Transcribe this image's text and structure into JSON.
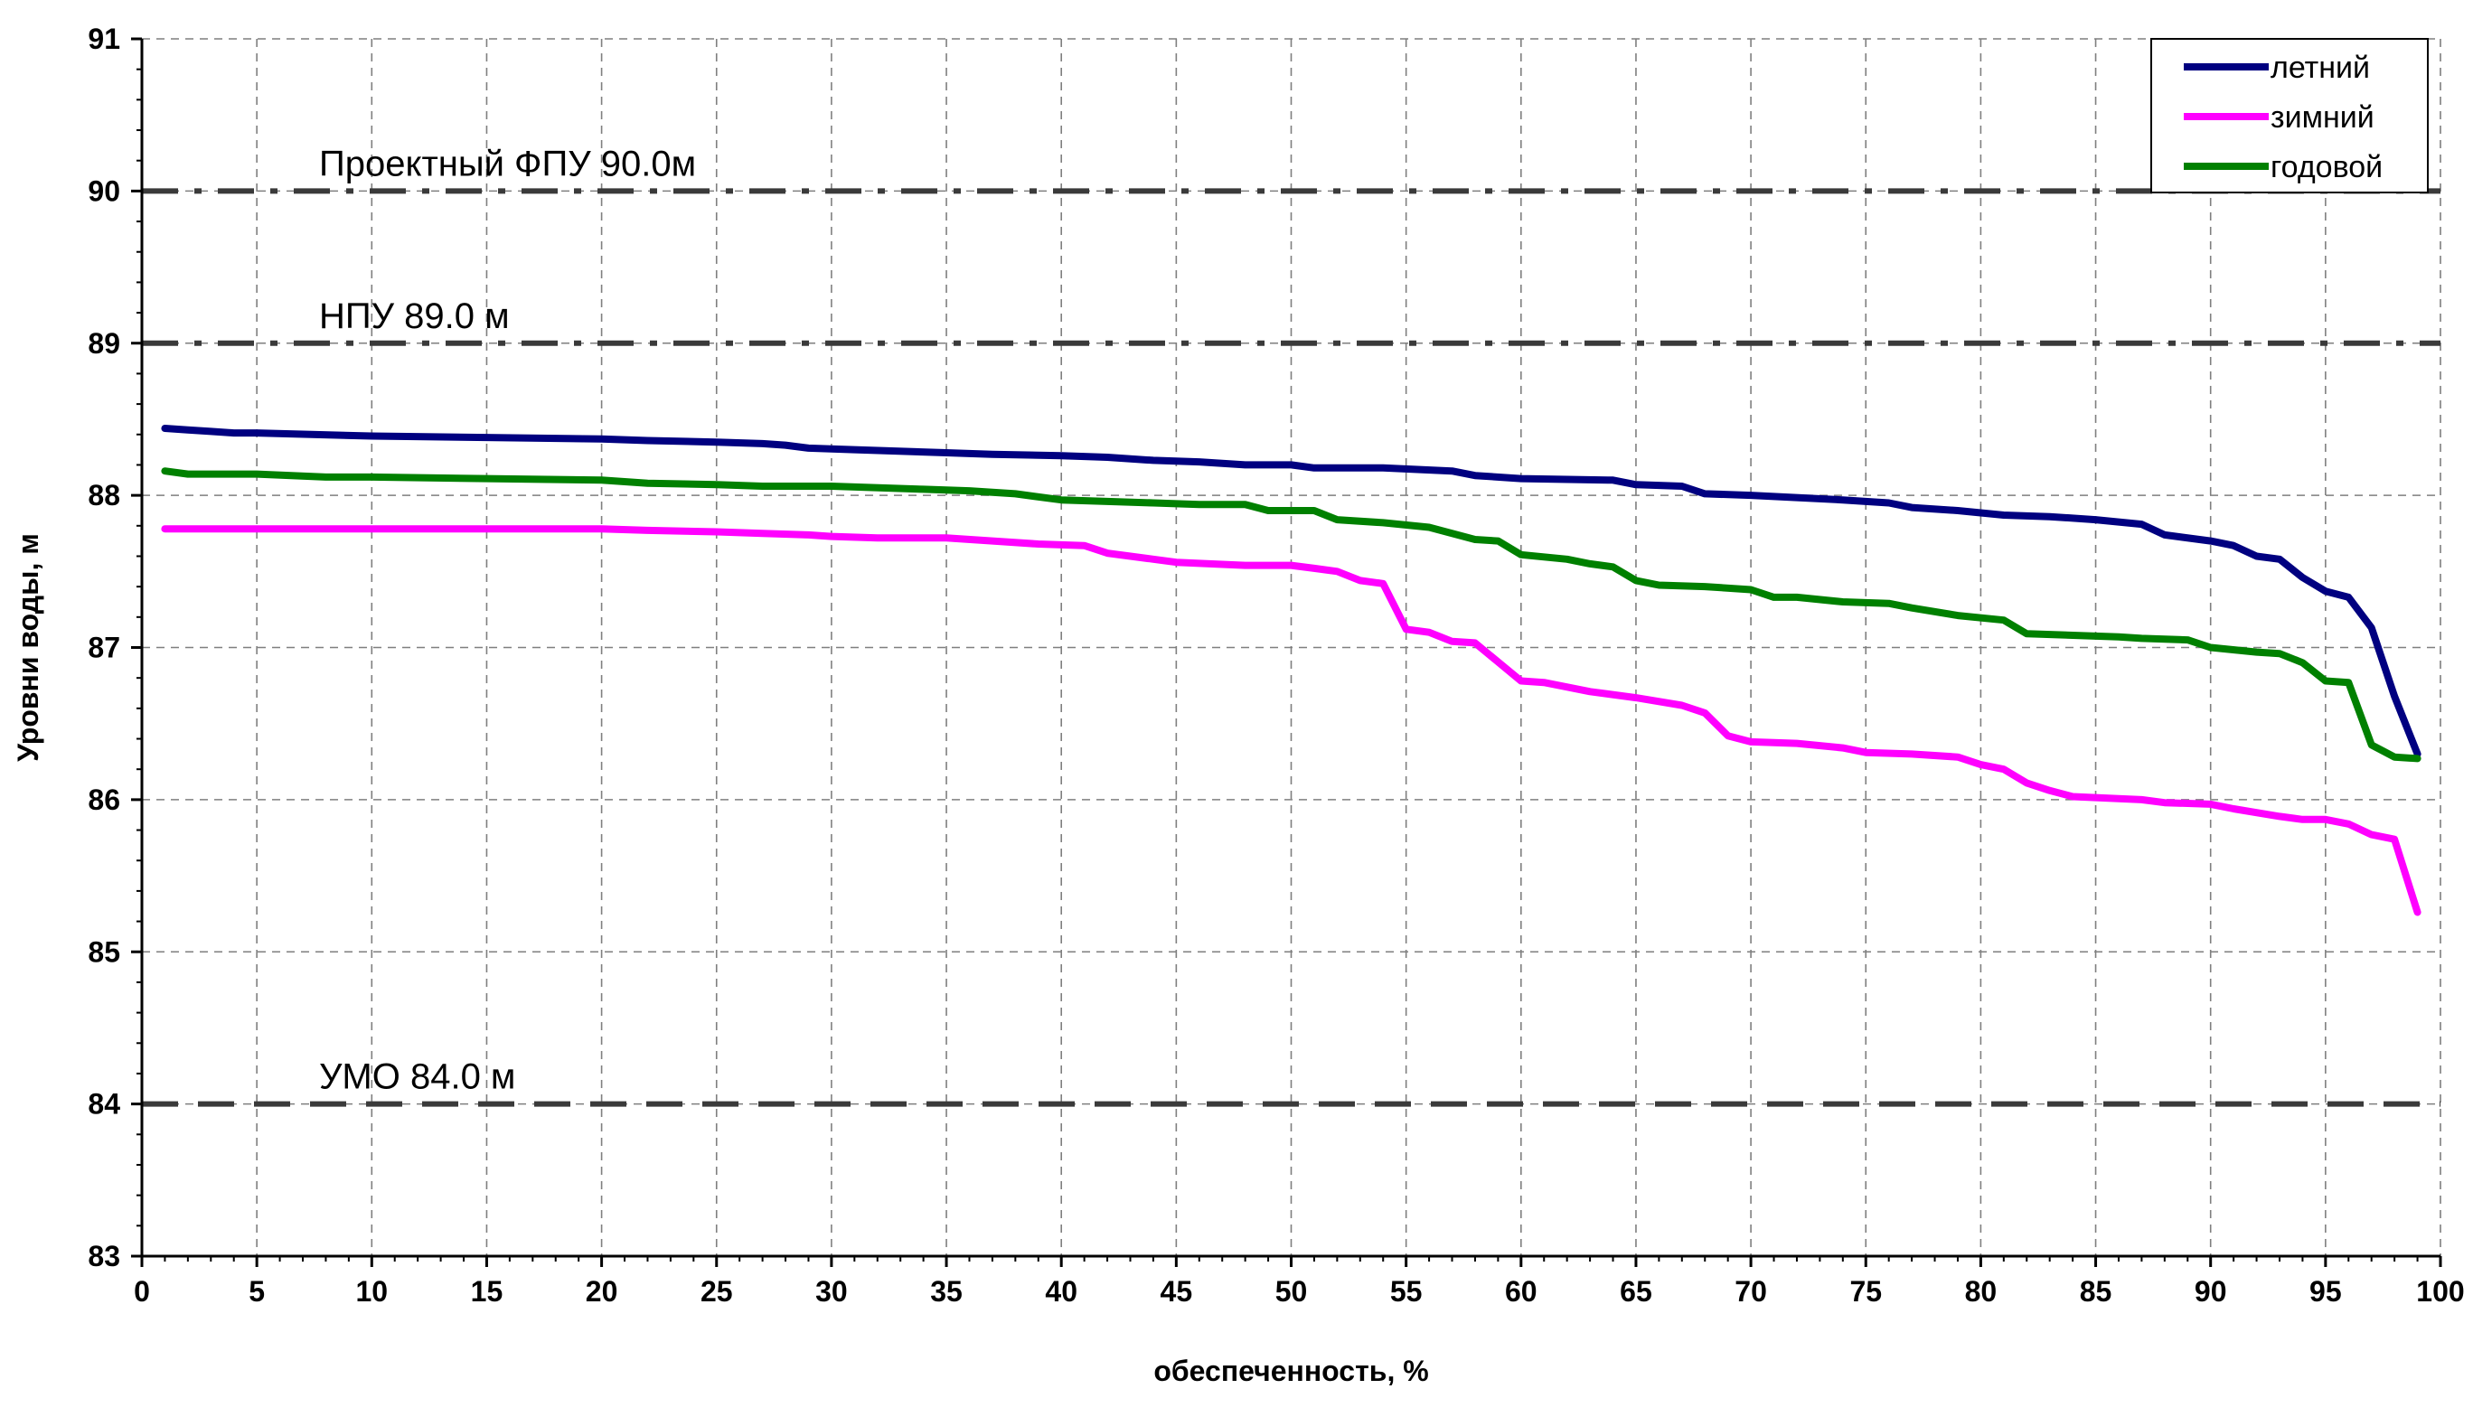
{
  "chart_data": {
    "type": "line",
    "xlabel": "обеспеченность, %",
    "ylabel": "Уровни воды, м",
    "xlim": [
      0,
      100
    ],
    "ylim": [
      83,
      91
    ],
    "x_ticks": [
      "0",
      "5",
      "10",
      "15",
      "20",
      "25",
      "30",
      "35",
      "40",
      "45",
      "50",
      "55",
      "60",
      "65",
      "70",
      "75",
      "80",
      "85",
      "90",
      "95",
      "100"
    ],
    "y_ticks": [
      "83",
      "84",
      "85",
      "86",
      "87",
      "88",
      "89",
      "90",
      "91"
    ],
    "grid": true,
    "legend_position": "top-right",
    "reference_lines": [
      {
        "label": "Проектный ФПУ 90.0м",
        "y": 90.0,
        "style": "dash-dot"
      },
      {
        "label": "НПУ 89.0 м",
        "y": 89.0,
        "style": "dash-dot"
      },
      {
        "label": "УМО 84.0 м",
        "y": 84.0,
        "style": "dash"
      }
    ],
    "series": [
      {
        "name": "летний",
        "color": "#000080",
        "points": [
          [
            1,
            88.44
          ],
          [
            2,
            88.43
          ],
          [
            3,
            88.42
          ],
          [
            4,
            88.41
          ],
          [
            5,
            88.41
          ],
          [
            10,
            88.39
          ],
          [
            15,
            88.38
          ],
          [
            20,
            88.37
          ],
          [
            22,
            88.36
          ],
          [
            25,
            88.35
          ],
          [
            27,
            88.34
          ],
          [
            28,
            88.33
          ],
          [
            29,
            88.31
          ],
          [
            31,
            88.3
          ],
          [
            35,
            88.28
          ],
          [
            37,
            88.27
          ],
          [
            40,
            88.26
          ],
          [
            42,
            88.25
          ],
          [
            44,
            88.23
          ],
          [
            46,
            88.22
          ],
          [
            48,
            88.2
          ],
          [
            50,
            88.2
          ],
          [
            51,
            88.18
          ],
          [
            54,
            88.18
          ],
          [
            57,
            88.16
          ],
          [
            58,
            88.13
          ],
          [
            60,
            88.11
          ],
          [
            64,
            88.1
          ],
          [
            65,
            88.07
          ],
          [
            67,
            88.06
          ],
          [
            68,
            88.01
          ],
          [
            70,
            88.0
          ],
          [
            74,
            87.97
          ],
          [
            76,
            87.95
          ],
          [
            77,
            87.92
          ],
          [
            79,
            87.9
          ],
          [
            81,
            87.87
          ],
          [
            83,
            87.86
          ],
          [
            85,
            87.84
          ],
          [
            87,
            87.81
          ],
          [
            88,
            87.74
          ],
          [
            90,
            87.7
          ],
          [
            91,
            87.67
          ],
          [
            92,
            87.6
          ],
          [
            93,
            87.58
          ],
          [
            94,
            87.46
          ],
          [
            95,
            87.37
          ],
          [
            96,
            87.33
          ],
          [
            97,
            87.13
          ],
          [
            98,
            86.68
          ],
          [
            99,
            86.3
          ]
        ]
      },
      {
        "name": "зимний",
        "color": "#ff00ff",
        "points": [
          [
            1,
            87.78
          ],
          [
            5,
            87.78
          ],
          [
            10,
            87.78
          ],
          [
            15,
            87.78
          ],
          [
            20,
            87.78
          ],
          [
            22,
            87.77
          ],
          [
            25,
            87.76
          ],
          [
            27,
            87.75
          ],
          [
            29,
            87.74
          ],
          [
            30,
            87.73
          ],
          [
            32,
            87.72
          ],
          [
            35,
            87.72
          ],
          [
            37,
            87.7
          ],
          [
            39,
            87.68
          ],
          [
            41,
            87.67
          ],
          [
            42,
            87.62
          ],
          [
            44,
            87.58
          ],
          [
            45,
            87.56
          ],
          [
            48,
            87.54
          ],
          [
            50,
            87.54
          ],
          [
            51,
            87.52
          ],
          [
            52,
            87.5
          ],
          [
            53,
            87.44
          ],
          [
            54,
            87.42
          ],
          [
            55,
            87.12
          ],
          [
            56,
            87.1
          ],
          [
            57,
            87.04
          ],
          [
            58,
            87.03
          ],
          [
            60,
            86.78
          ],
          [
            61,
            86.77
          ],
          [
            63,
            86.71
          ],
          [
            65,
            86.67
          ],
          [
            67,
            86.62
          ],
          [
            68,
            86.57
          ],
          [
            69,
            86.42
          ],
          [
            70,
            86.38
          ],
          [
            72,
            86.37
          ],
          [
            74,
            86.34
          ],
          [
            75,
            86.31
          ],
          [
            77,
            86.3
          ],
          [
            79,
            86.28
          ],
          [
            80,
            86.23
          ],
          [
            81,
            86.2
          ],
          [
            82,
            86.11
          ],
          [
            83,
            86.06
          ],
          [
            84,
            86.02
          ],
          [
            87,
            86.0
          ],
          [
            88,
            85.98
          ],
          [
            90,
            85.97
          ],
          [
            91,
            85.94
          ],
          [
            93,
            85.89
          ],
          [
            94,
            85.87
          ],
          [
            95,
            85.87
          ],
          [
            96,
            85.84
          ],
          [
            97,
            85.77
          ],
          [
            98,
            85.74
          ],
          [
            99,
            85.26
          ]
        ]
      },
      {
        "name": "годовой",
        "color": "#008000",
        "points": [
          [
            1,
            88.16
          ],
          [
            2,
            88.14
          ],
          [
            5,
            88.14
          ],
          [
            8,
            88.12
          ],
          [
            10,
            88.12
          ],
          [
            15,
            88.11
          ],
          [
            20,
            88.1
          ],
          [
            22,
            88.08
          ],
          [
            25,
            88.07
          ],
          [
            27,
            88.06
          ],
          [
            30,
            88.06
          ],
          [
            34,
            88.04
          ],
          [
            36,
            88.03
          ],
          [
            38,
            88.01
          ],
          [
            40,
            87.97
          ],
          [
            42,
            87.96
          ],
          [
            44,
            87.95
          ],
          [
            46,
            87.94
          ],
          [
            48,
            87.94
          ],
          [
            49,
            87.9
          ],
          [
            51,
            87.9
          ],
          [
            52,
            87.84
          ],
          [
            54,
            87.82
          ],
          [
            56,
            87.79
          ],
          [
            57,
            87.75
          ],
          [
            58,
            87.71
          ],
          [
            59,
            87.7
          ],
          [
            60,
            87.61
          ],
          [
            62,
            87.58
          ],
          [
            63,
            87.55
          ],
          [
            64,
            87.53
          ],
          [
            65,
            87.44
          ],
          [
            66,
            87.41
          ],
          [
            68,
            87.4
          ],
          [
            70,
            87.38
          ],
          [
            71,
            87.33
          ],
          [
            72,
            87.33
          ],
          [
            74,
            87.3
          ],
          [
            76,
            87.29
          ],
          [
            77,
            87.26
          ],
          [
            79,
            87.21
          ],
          [
            81,
            87.18
          ],
          [
            82,
            87.09
          ],
          [
            84,
            87.08
          ],
          [
            86,
            87.07
          ],
          [
            87,
            87.06
          ],
          [
            89,
            87.05
          ],
          [
            90,
            87.0
          ],
          [
            92,
            86.97
          ],
          [
            93,
            86.96
          ],
          [
            94,
            86.9
          ],
          [
            95,
            86.78
          ],
          [
            96,
            86.77
          ],
          [
            97,
            86.36
          ],
          [
            98,
            86.28
          ],
          [
            99,
            86.27
          ]
        ]
      }
    ]
  }
}
